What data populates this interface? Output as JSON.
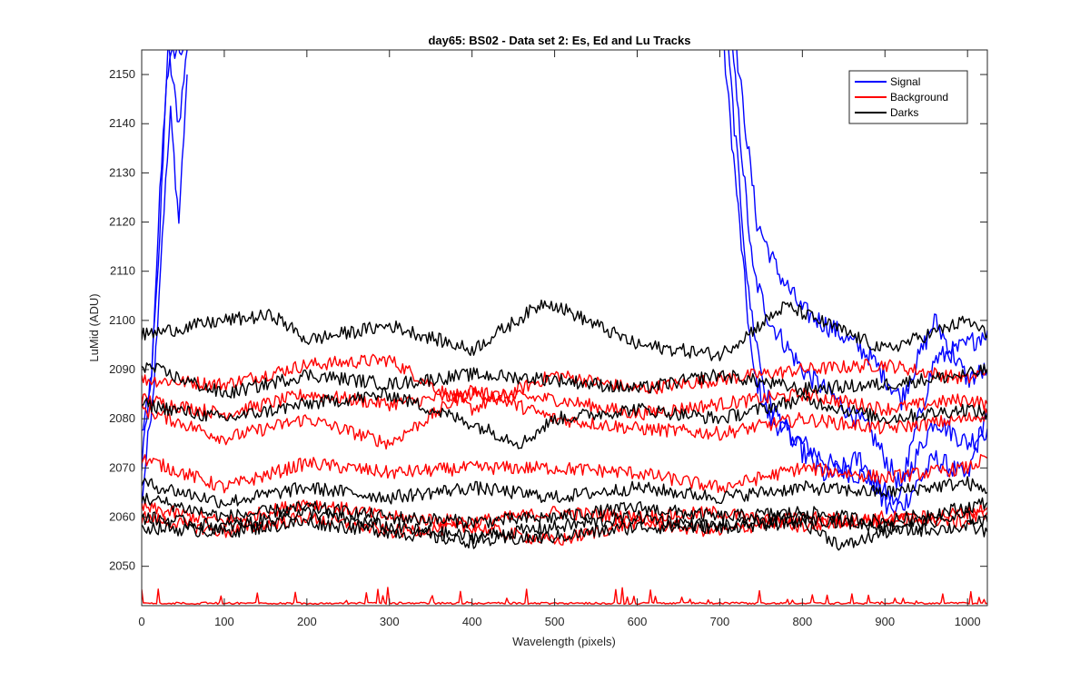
{
  "chart_data": {
    "type": "line",
    "title": "day65: BS02 - Data set 2: Es, Ed and Lu Tracks",
    "xlabel": "Wavelength (pixels)",
    "ylabel": "LuMid (ADU)",
    "xlim": [
      0,
      1024
    ],
    "ylim": [
      2042,
      2155
    ],
    "x_ticks": [
      0,
      100,
      200,
      300,
      400,
      500,
      600,
      700,
      800,
      900,
      1000
    ],
    "y_ticks": [
      2050,
      2060,
      2070,
      2080,
      2090,
      2100,
      2110,
      2120,
      2130,
      2140,
      2150
    ],
    "grid": false,
    "legend_position": "top-right",
    "legend": [
      {
        "label": "Signal",
        "color": "#0000ff"
      },
      {
        "label": "Background",
        "color": "#ff0000"
      },
      {
        "label": "Darks",
        "color": "#000000"
      }
    ],
    "series": [
      {
        "name": "Signal",
        "color": "#0000ff",
        "points": [
          [
            0,
            2077
          ],
          [
            10,
            2085
          ],
          [
            20,
            2110
          ],
          [
            30,
            2150
          ],
          [
            40,
            2155
          ],
          [
            50,
            2155
          ]
        ]
      },
      {
        "name": "Signal",
        "color": "#0000ff",
        "points": [
          [
            0,
            2070
          ],
          [
            12,
            2090
          ],
          [
            22,
            2125
          ],
          [
            32,
            2155
          ],
          [
            45,
            2140
          ],
          [
            55,
            2155
          ]
        ]
      },
      {
        "name": "Signal",
        "color": "#0000ff",
        "points": [
          [
            0,
            2063
          ],
          [
            15,
            2088
          ],
          [
            25,
            2118
          ],
          [
            35,
            2142
          ],
          [
            45,
            2120
          ],
          [
            55,
            2150
          ]
        ]
      },
      {
        "name": "Signal",
        "color": "#0000ff",
        "points": [
          [
            705,
            2155
          ],
          [
            730,
            2108
          ],
          [
            740,
            2090
          ],
          [
            760,
            2080
          ],
          [
            800,
            2075
          ],
          [
            840,
            2070
          ],
          [
            880,
            2068
          ],
          [
            920,
            2062
          ],
          [
            960,
            2072
          ],
          [
            1000,
            2068
          ],
          [
            1024,
            2082
          ]
        ]
      },
      {
        "name": "Signal",
        "color": "#0000ff",
        "points": [
          [
            715,
            2155
          ],
          [
            740,
            2110
          ],
          [
            760,
            2100
          ],
          [
            800,
            2090
          ],
          [
            840,
            2084
          ],
          [
            880,
            2078
          ],
          [
            920,
            2066
          ],
          [
            960,
            2080
          ],
          [
            1000,
            2075
          ],
          [
            1024,
            2078
          ]
        ]
      },
      {
        "name": "Signal",
        "color": "#0000ff",
        "points": [
          [
            720,
            2155
          ],
          [
            745,
            2120
          ],
          [
            770,
            2110
          ],
          [
            800,
            2102
          ],
          [
            840,
            2098
          ],
          [
            880,
            2093
          ],
          [
            920,
            2084
          ],
          [
            960,
            2100
          ],
          [
            1000,
            2088
          ],
          [
            1024,
            2090
          ]
        ]
      },
      {
        "name": "Signal",
        "color": "#0000ff",
        "points": [
          [
            710,
            2155
          ],
          [
            735,
            2105
          ],
          [
            755,
            2085
          ],
          [
            790,
            2075
          ],
          [
            830,
            2068
          ],
          [
            870,
            2072
          ],
          [
            910,
            2060
          ],
          [
            960,
            2092
          ],
          [
            1000,
            2095
          ],
          [
            1024,
            2098
          ]
        ]
      },
      {
        "name": "Background",
        "color": "#ff0000",
        "points": [
          [
            0,
            2088
          ],
          [
            100,
            2087
          ],
          [
            200,
            2091
          ],
          [
            300,
            2092
          ],
          [
            400,
            2082
          ],
          [
            500,
            2089
          ],
          [
            600,
            2086
          ],
          [
            700,
            2088
          ],
          [
            800,
            2090
          ],
          [
            900,
            2091
          ],
          [
            1000,
            2088
          ],
          [
            1024,
            2090
          ]
        ]
      },
      {
        "name": "Background",
        "color": "#ff0000",
        "points": [
          [
            0,
            2084
          ],
          [
            100,
            2081
          ],
          [
            200,
            2085
          ],
          [
            300,
            2083
          ],
          [
            400,
            2085
          ],
          [
            500,
            2084
          ],
          [
            600,
            2081
          ],
          [
            700,
            2083
          ],
          [
            800,
            2085
          ],
          [
            900,
            2082
          ],
          [
            1000,
            2084
          ],
          [
            1024,
            2083
          ]
        ]
      },
      {
        "name": "Background",
        "color": "#ff0000",
        "points": [
          [
            0,
            2082
          ],
          [
            100,
            2076
          ],
          [
            200,
            2080
          ],
          [
            300,
            2075
          ],
          [
            400,
            2086
          ],
          [
            500,
            2080
          ],
          [
            600,
            2078
          ],
          [
            700,
            2077
          ],
          [
            800,
            2080
          ],
          [
            900,
            2078
          ],
          [
            1000,
            2080
          ],
          [
            1024,
            2081
          ]
        ]
      },
      {
        "name": "Background",
        "color": "#ff0000",
        "points": [
          [
            0,
            2072
          ],
          [
            100,
            2066
          ],
          [
            200,
            2071
          ],
          [
            300,
            2069
          ],
          [
            400,
            2070
          ],
          [
            500,
            2070
          ],
          [
            600,
            2069
          ],
          [
            700,
            2066
          ],
          [
            800,
            2070
          ],
          [
            900,
            2068
          ],
          [
            1000,
            2070
          ],
          [
            1024,
            2072
          ]
        ]
      },
      {
        "name": "Background",
        "color": "#ff0000",
        "points": [
          [
            0,
            2062
          ],
          [
            100,
            2059
          ],
          [
            200,
            2063
          ],
          [
            300,
            2060
          ],
          [
            400,
            2059
          ],
          [
            500,
            2061
          ],
          [
            600,
            2060
          ],
          [
            700,
            2061
          ],
          [
            800,
            2058
          ],
          [
            900,
            2060
          ],
          [
            1000,
            2059
          ],
          [
            1024,
            2061
          ]
        ]
      },
      {
        "name": "Background",
        "color": "#ff0000",
        "points": [
          [
            0,
            2060
          ],
          [
            100,
            2057
          ],
          [
            200,
            2060
          ],
          [
            300,
            2057
          ],
          [
            400,
            2058
          ],
          [
            500,
            2055
          ],
          [
            600,
            2059
          ],
          [
            700,
            2057
          ],
          [
            800,
            2060
          ],
          [
            900,
            2059
          ],
          [
            1000,
            2061
          ],
          [
            1024,
            2062
          ]
        ]
      },
      {
        "name": "Background",
        "color": "#ff0000",
        "points": [
          [
            0,
            2042.5
          ],
          [
            100,
            2042.5
          ],
          [
            200,
            2042.5
          ],
          [
            300,
            2042.5
          ],
          [
            400,
            2042.5
          ],
          [
            500,
            2042.5
          ],
          [
            600,
            2042.5
          ],
          [
            700,
            2042.5
          ],
          [
            800,
            2042.5
          ],
          [
            900,
            2042.5
          ],
          [
            1000,
            2042.5
          ],
          [
            1024,
            2042.5
          ]
        ]
      },
      {
        "name": "Darks",
        "color": "#000000",
        "points": [
          [
            0,
            2097
          ],
          [
            100,
            2100
          ],
          [
            160,
            2101
          ],
          [
            200,
            2096
          ],
          [
            300,
            2099
          ],
          [
            400,
            2094
          ],
          [
            490,
            2104
          ],
          [
            600,
            2095
          ],
          [
            700,
            2093
          ],
          [
            780,
            2103
          ],
          [
            900,
            2094
          ],
          [
            1000,
            2100
          ],
          [
            1024,
            2097
          ]
        ]
      },
      {
        "name": "Darks",
        "color": "#000000",
        "points": [
          [
            0,
            2091
          ],
          [
            100,
            2085
          ],
          [
            200,
            2089
          ],
          [
            300,
            2087
          ],
          [
            400,
            2089
          ],
          [
            500,
            2088
          ],
          [
            600,
            2086
          ],
          [
            700,
            2089
          ],
          [
            800,
            2086
          ],
          [
            900,
            2087
          ],
          [
            1000,
            2089
          ],
          [
            1024,
            2090
          ]
        ]
      },
      {
        "name": "Darks",
        "color": "#000000",
        "points": [
          [
            0,
            2083
          ],
          [
            100,
            2080
          ],
          [
            200,
            2083
          ],
          [
            300,
            2085
          ],
          [
            400,
            2079
          ],
          [
            460,
            2075
          ],
          [
            500,
            2080
          ],
          [
            600,
            2082
          ],
          [
            700,
            2080
          ],
          [
            800,
            2084
          ],
          [
            900,
            2080
          ],
          [
            1000,
            2082
          ],
          [
            1024,
            2081
          ]
        ]
      },
      {
        "name": "Darks",
        "color": "#000000",
        "points": [
          [
            0,
            2067
          ],
          [
            100,
            2063
          ],
          [
            200,
            2066
          ],
          [
            300,
            2064
          ],
          [
            400,
            2066
          ],
          [
            500,
            2064
          ],
          [
            600,
            2066
          ],
          [
            700,
            2064
          ],
          [
            800,
            2066
          ],
          [
            900,
            2065
          ],
          [
            1000,
            2067
          ],
          [
            1024,
            2065
          ]
        ]
      },
      {
        "name": "Darks",
        "color": "#000000",
        "points": [
          [
            0,
            2064
          ],
          [
            100,
            2060
          ],
          [
            200,
            2062
          ],
          [
            300,
            2060
          ],
          [
            400,
            2059
          ],
          [
            500,
            2060
          ],
          [
            600,
            2062
          ],
          [
            700,
            2060
          ],
          [
            800,
            2061
          ],
          [
            900,
            2059
          ],
          [
            1000,
            2062
          ],
          [
            1024,
            2063
          ]
        ]
      },
      {
        "name": "Darks",
        "color": "#000000",
        "points": [
          [
            0,
            2060
          ],
          [
            100,
            2058
          ],
          [
            200,
            2061
          ],
          [
            300,
            2058
          ],
          [
            400,
            2056
          ],
          [
            500,
            2058
          ],
          [
            600,
            2060
          ],
          [
            700,
            2058
          ],
          [
            800,
            2060
          ],
          [
            900,
            2058
          ],
          [
            1000,
            2060
          ],
          [
            1024,
            2059
          ]
        ]
      },
      {
        "name": "Darks",
        "color": "#000000",
        "points": [
          [
            0,
            2058
          ],
          [
            100,
            2057
          ],
          [
            200,
            2059
          ],
          [
            300,
            2057
          ],
          [
            400,
            2055
          ],
          [
            500,
            2056
          ],
          [
            600,
            2058
          ],
          [
            700,
            2058
          ],
          [
            800,
            2059
          ],
          [
            850,
            2054
          ],
          [
            900,
            2057
          ],
          [
            1000,
            2058
          ],
          [
            1024,
            2057
          ]
        ]
      }
    ]
  }
}
